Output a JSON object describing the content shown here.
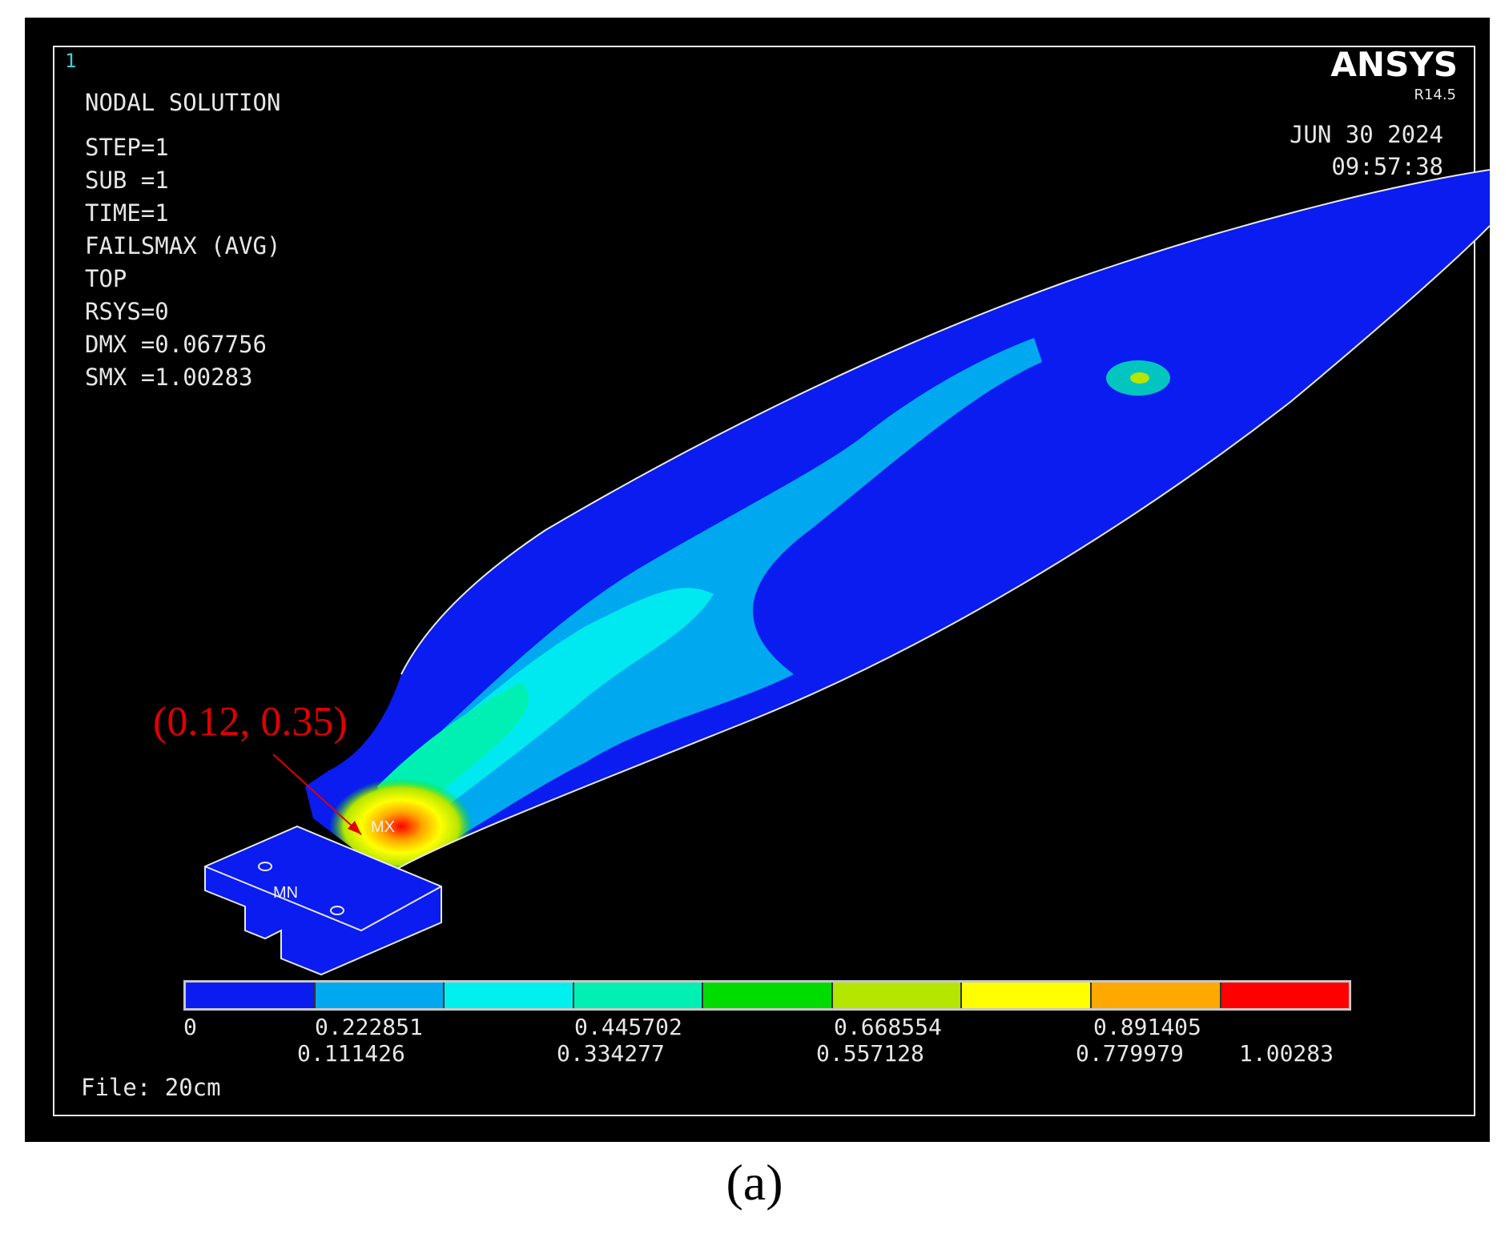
{
  "header": {
    "window_number": "1",
    "title": "NODAL SOLUTION",
    "lines": [
      "STEP=1",
      "SUB =1",
      "TIME=1",
      "FAILSMAX (AVG)",
      "TOP",
      "RSYS=0",
      "DMX =0.067756",
      "SMX =1.00283"
    ]
  },
  "branding": {
    "logo": "ANSYS",
    "version": "R14.5"
  },
  "timestamp": {
    "date": "JUN 30 2024",
    "time": "09:57:38"
  },
  "legend": {
    "colors": [
      "#0a1cf0",
      "#00a8f0",
      "#00f0f0",
      "#00f0b4",
      "#00dc00",
      "#b4e600",
      "#ffff00",
      "#ffa800",
      "#ff0000"
    ],
    "labels_top": [
      "0",
      "0.222851",
      "0.445702",
      "0.668554",
      "0.891405"
    ],
    "labels_bottom": [
      "0.111426",
      "0.334277",
      "0.557128",
      "0.779979",
      "1.00283"
    ]
  },
  "markers": {
    "max": "MX",
    "min": "MN"
  },
  "annotation": {
    "text": "(0.12, 0.35)",
    "color": "#e00000"
  },
  "footer": {
    "file": "File: 20cm"
  },
  "caption": "(a)"
}
